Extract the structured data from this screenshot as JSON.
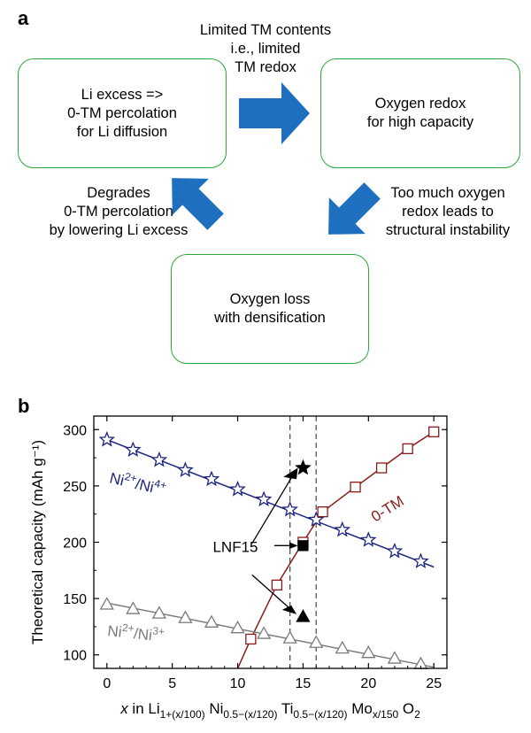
{
  "panel_a": {
    "label": "a",
    "box_top_left": "Li excess =>\n0-TM percolation\nfor Li diffusion",
    "box_top_right": "Oxygen redox\nfor high capacity",
    "box_bottom": "Oxygen loss\nwith densification",
    "note_top": "Limited TM contents\ni.e., limited\nTM redox",
    "note_right": "Too much oxygen\nredox leads to\nstructural instability",
    "note_left": "Degrades\n0-TM percolation\nby lowering Li excess",
    "arrow_color": "#1f6fc0",
    "box_border_color": "#2ca83a"
  },
  "panel_b": {
    "label": "b"
  },
  "chart_data": {
    "type": "scatter",
    "ylabel": "Theoretical capacity (mAh g⁻¹)",
    "xlabel_parts": {
      "x": "x",
      "in": "in",
      "li": "Li",
      "li_sub": "1+(x/100)",
      "ni": "Ni",
      "ni_sub": "0.5−(x/120)",
      "ti": "Ti",
      "ti_sub": "0.5−(x/120)",
      "mo": "Mo",
      "mo_sub": "x/150",
      "o": "O",
      "o_sub": "2"
    },
    "xlim": [
      -1,
      26
    ],
    "ylim": [
      88,
      312
    ],
    "xticks": [
      0,
      5,
      10,
      15,
      20,
      25
    ],
    "yticks": [
      100,
      150,
      200,
      250,
      300
    ],
    "vlines": [
      14,
      16
    ],
    "series": [
      {
        "name": "Ni2+/Ni4+",
        "marker": "star",
        "color": "#1a237e",
        "x": [
          0,
          2,
          4,
          6,
          8,
          10,
          12,
          14,
          16,
          18,
          20,
          22,
          24
        ],
        "y": [
          291,
          282,
          273,
          264,
          256,
          247,
          238,
          229,
          220,
          211,
          202,
          192,
          183
        ],
        "fit_line": [
          [
            0,
            291
          ],
          [
            25,
            178
          ]
        ]
      },
      {
        "name": "0-TM",
        "marker": "square",
        "color": "#8b1a1a",
        "x": [
          11,
          13,
          15,
          16.5,
          19,
          21,
          23,
          25
        ],
        "y": [
          114,
          162,
          200,
          227,
          249,
          266,
          283,
          298
        ],
        "fit_line": [
          [
            10,
            88
          ],
          [
            11,
            114
          ],
          [
            13,
            162
          ],
          [
            15,
            200
          ],
          [
            16.5,
            227
          ],
          [
            19,
            249
          ],
          [
            21,
            266
          ],
          [
            23,
            283
          ],
          [
            25,
            298
          ]
        ]
      },
      {
        "name": "Ni2+/Ni3+",
        "marker": "triangle",
        "color": "#7a7a7a",
        "x": [
          0,
          2,
          4,
          6,
          8,
          10,
          12,
          14,
          16,
          18,
          20,
          22,
          24
        ],
        "y": [
          145,
          141,
          137,
          133,
          129,
          124,
          119,
          115,
          111,
          106,
          102,
          97,
          92
        ],
        "fit_line": [
          [
            0,
            146
          ],
          [
            25,
            89
          ]
        ]
      }
    ],
    "series_labels": [
      {
        "base": "Ni",
        "sup1": "2+",
        "mid": "/Ni",
        "sup2": "4+"
      },
      {
        "base": "0-TM"
      },
      {
        "base": "Ni",
        "sup1": "2+",
        "mid": "/Ni",
        "sup2": "3+"
      }
    ],
    "lnf15": {
      "label": "LNF15",
      "points": [
        {
          "x": 15,
          "y": 266,
          "marker": "star"
        },
        {
          "x": 15,
          "y": 197,
          "marker": "square"
        },
        {
          "x": 15,
          "y": 134,
          "marker": "triangle"
        }
      ]
    }
  }
}
